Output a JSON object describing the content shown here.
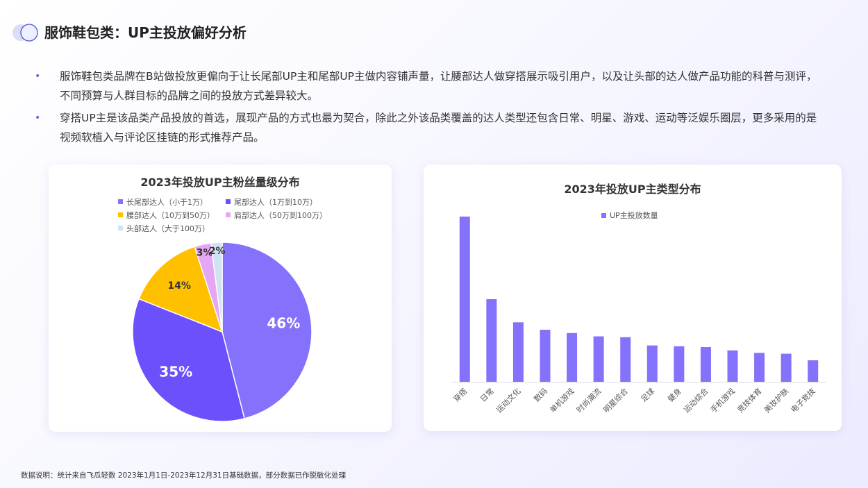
{
  "page": {
    "title": "服饰鞋包类：UP主投放偏好分析",
    "bullets": [
      "服饰鞋包类品牌在B站做投放更偏向于让长尾部UP主和尾部UP主做内容铺声量，让腰部达人做穿搭展示吸引用户，以及让头部的达人做产品功能的科普与测评，不同预算与人群目标的品牌之间的投放方式差异较大。",
      "穿搭UP主是该品类产品投放的首选，展现产品的方式也最为契合，除此之外该品类覆盖的达人类型还包含日常、明星、游戏、运动等泛娱乐圈层，更多采用的是视频软植入与评论区挂链的形式推荐产品。"
    ],
    "bullet_symbol": "•",
    "footer": "数据说明：统计来自飞瓜轻数 2023年1月1日-2023年12月31日基础数据，部分数据已作脱敏化处理"
  },
  "chart_data": [
    {
      "type": "pie",
      "title": "2023年投放UP主粉丝量级分布",
      "legend_position": "top",
      "slices": [
        {
          "label": "长尾部达人（小于1万）",
          "value": 46,
          "display": "46%",
          "color": "#8472fc"
        },
        {
          "label": "尾部达人（1万到10万）",
          "value": 35,
          "display": "35%",
          "color": "#6b50fb"
        },
        {
          "label": "腰部达人（10万到50万）",
          "value": 14,
          "display": "14%",
          "color": "#ffc000"
        },
        {
          "label": "肩部达人（50万到100万）",
          "value": 3,
          "display": "3%",
          "color": "#e5a6f5"
        },
        {
          "label": "头部达人（大于100万）",
          "value": 2,
          "display": "2%",
          "color": "#cfe3f3"
        }
      ]
    },
    {
      "type": "bar",
      "title": "2023年投放UP主类型分布",
      "legend_position": "top",
      "grid": false,
      "y_axis_visible": false,
      "ylim": [
        0,
        100
      ],
      "categories": [
        "穿搭",
        "日常",
        "运动文化",
        "数码",
        "单机游戏",
        "时尚潮流",
        "明星综合",
        "足球",
        "健身",
        "运动综合",
        "手机游戏",
        "竞技体育",
        "美妆护肤",
        "电子竞技"
      ],
      "series": [
        {
          "name": "UP主投放数量",
          "color": "#8472fc",
          "values": [
            100,
            50,
            36,
            31.5,
            29.5,
            27.5,
            27,
            22,
            21.5,
            21,
            19,
            17.5,
            17,
            13
          ]
        }
      ]
    }
  ]
}
